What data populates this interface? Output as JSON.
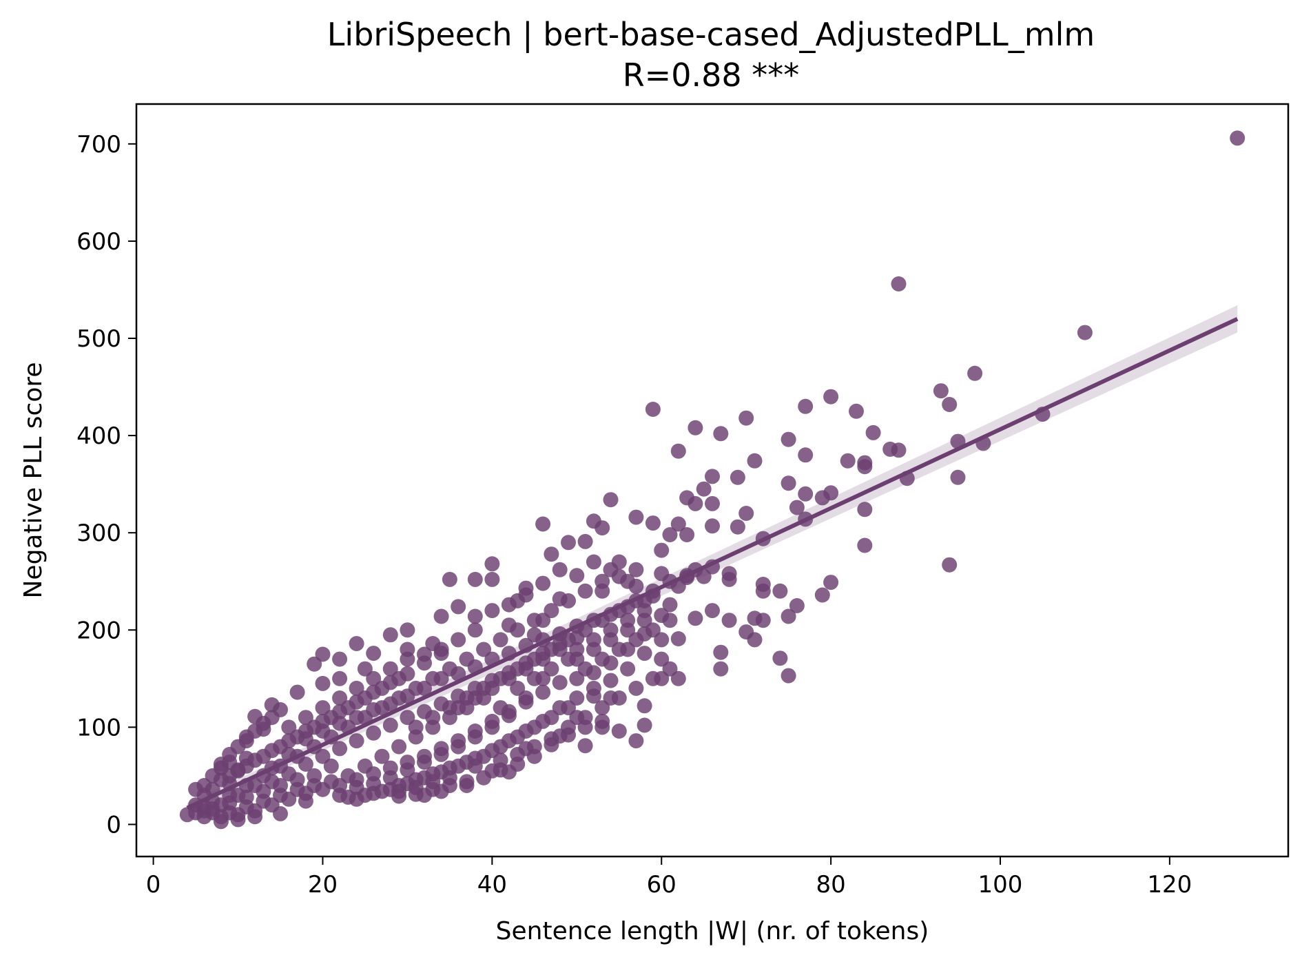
{
  "chart_data": {
    "type": "scatter",
    "title": "LibriSpeech | bert-base-cased_AdjustedPLL_mlm",
    "subtitle": "R=0.88 ***",
    "xlabel": "Sentence length |W| (nr. of tokens)",
    "ylabel": "Negative PLL score",
    "xlim": [
      -2,
      134
    ],
    "ylim": [
      -33,
      741
    ],
    "xticks": [
      0,
      20,
      40,
      60,
      80,
      100,
      120
    ],
    "yticks": [
      0,
      100,
      200,
      300,
      400,
      500,
      600,
      700
    ],
    "grid": false,
    "color": "#6b3f70",
    "regression": {
      "x": [
        4,
        128
      ],
      "y": [
        17,
        520
      ],
      "ci_upper": [
        22,
        534
      ],
      "ci_lower": [
        12,
        506
      ]
    },
    "points": [
      [
        128,
        706
      ],
      [
        88,
        556
      ],
      [
        110,
        506
      ],
      [
        97,
        464
      ],
      [
        93,
        446
      ],
      [
        94,
        432
      ],
      [
        105,
        422
      ],
      [
        80,
        440
      ],
      [
        77,
        430
      ],
      [
        83,
        425
      ],
      [
        59,
        427
      ],
      [
        70,
        418
      ],
      [
        64,
        408
      ],
      [
        67,
        402
      ],
      [
        85,
        403
      ],
      [
        75,
        396
      ],
      [
        95,
        394
      ],
      [
        98,
        392
      ],
      [
        87,
        386
      ],
      [
        88,
        385
      ],
      [
        62,
        384
      ],
      [
        77,
        380
      ],
      [
        71,
        374
      ],
      [
        82,
        374
      ],
      [
        84,
        372
      ],
      [
        84,
        368
      ],
      [
        66,
        358
      ],
      [
        69,
        357
      ],
      [
        95,
        357
      ],
      [
        89,
        356
      ],
      [
        75,
        351
      ],
      [
        65,
        345
      ],
      [
        77,
        340
      ],
      [
        80,
        341
      ],
      [
        79,
        336
      ],
      [
        66,
        330
      ],
      [
        63,
        336
      ],
      [
        64,
        330
      ],
      [
        76,
        326
      ],
      [
        84,
        324
      ],
      [
        70,
        320
      ],
      [
        77,
        314
      ],
      [
        54,
        334
      ],
      [
        57,
        316
      ],
      [
        52,
        312
      ],
      [
        46,
        309
      ],
      [
        72,
        294
      ],
      [
        69,
        306
      ],
      [
        62,
        309
      ],
      [
        59,
        310
      ],
      [
        66,
        307
      ],
      [
        61,
        298
      ],
      [
        63,
        298
      ],
      [
        84,
        287
      ],
      [
        94,
        267
      ],
      [
        68,
        252
      ],
      [
        80,
        249
      ],
      [
        72,
        247
      ],
      [
        72,
        240
      ],
      [
        74,
        240
      ],
      [
        79,
        236
      ],
      [
        76,
        225
      ],
      [
        66,
        220
      ],
      [
        68,
        210
      ],
      [
        71,
        212
      ],
      [
        72,
        210
      ],
      [
        75,
        214
      ],
      [
        64,
        212
      ],
      [
        62,
        191
      ],
      [
        60,
        190
      ],
      [
        70,
        198
      ],
      [
        71,
        190
      ],
      [
        67,
        177
      ],
      [
        67,
        160
      ],
      [
        74,
        171
      ],
      [
        75,
        153
      ],
      [
        62,
        150
      ],
      [
        60,
        150
      ],
      [
        58,
        102
      ],
      [
        58,
        122
      ],
      [
        51,
        81
      ],
      [
        53,
        100
      ],
      [
        50,
        110
      ],
      [
        48,
        91
      ],
      [
        44,
        78
      ],
      [
        42,
        54
      ],
      [
        40,
        55
      ],
      [
        38,
        60
      ],
      [
        33,
        36
      ],
      [
        31,
        31
      ],
      [
        29,
        29
      ],
      [
        24,
        26
      ],
      [
        22,
        30
      ],
      [
        18,
        24
      ],
      [
        15,
        11
      ],
      [
        12,
        8
      ],
      [
        10,
        5
      ],
      [
        8,
        3
      ],
      [
        5,
        12
      ],
      [
        4,
        10
      ],
      [
        6,
        18
      ],
      [
        7,
        24
      ],
      [
        9,
        42
      ],
      [
        10,
        55
      ],
      [
        11,
        68
      ],
      [
        12,
        111
      ],
      [
        14,
        123
      ],
      [
        19,
        165
      ],
      [
        20,
        175
      ],
      [
        22,
        170
      ],
      [
        24,
        186
      ],
      [
        26,
        176
      ],
      [
        30,
        180
      ],
      [
        33,
        186
      ],
      [
        35,
        252
      ],
      [
        38,
        252
      ],
      [
        40,
        268
      ],
      [
        40,
        252
      ],
      [
        44,
        243
      ],
      [
        43,
        230
      ],
      [
        47,
        278
      ],
      [
        49,
        290
      ],
      [
        51,
        291
      ],
      [
        53,
        305
      ],
      [
        55,
        270
      ],
      [
        57,
        262
      ],
      [
        60,
        282
      ],
      [
        63,
        254
      ],
      [
        65,
        255
      ],
      [
        53,
        240
      ],
      [
        48,
        232
      ],
      [
        46,
        210
      ],
      [
        45,
        195
      ],
      [
        42,
        205
      ],
      [
        38,
        214
      ],
      [
        36,
        224
      ],
      [
        34,
        214
      ],
      [
        30,
        200
      ],
      [
        28,
        195
      ],
      [
        25,
        160
      ],
      [
        22,
        150
      ],
      [
        20,
        145
      ],
      [
        17,
        136
      ],
      [
        15,
        118
      ],
      [
        13,
        98
      ],
      [
        11,
        86
      ],
      [
        9,
        64
      ],
      [
        8,
        58
      ],
      [
        7,
        36
      ],
      [
        14,
        58
      ],
      [
        16,
        72
      ],
      [
        18,
        88
      ],
      [
        20,
        96
      ],
      [
        22,
        104
      ],
      [
        24,
        110
      ],
      [
        26,
        118
      ],
      [
        28,
        124
      ],
      [
        30,
        132
      ],
      [
        32,
        140
      ],
      [
        34,
        150
      ],
      [
        36,
        155
      ],
      [
        38,
        162
      ],
      [
        40,
        170
      ],
      [
        42,
        176
      ],
      [
        44,
        184
      ],
      [
        46,
        190
      ],
      [
        48,
        196
      ],
      [
        50,
        204
      ],
      [
        52,
        210
      ],
      [
        54,
        216
      ],
      [
        56,
        224
      ],
      [
        58,
        230
      ],
      [
        46,
        150
      ],
      [
        44,
        130
      ],
      [
        42,
        112
      ],
      [
        40,
        100
      ],
      [
        38,
        90
      ],
      [
        36,
        80
      ],
      [
        34,
        72
      ],
      [
        32,
        64
      ],
      [
        30,
        56
      ],
      [
        28,
        48
      ],
      [
        26,
        42
      ],
      [
        24,
        38
      ],
      [
        21,
        44
      ],
      [
        19,
        40
      ],
      [
        17,
        36
      ],
      [
        15,
        30
      ],
      [
        13,
        24
      ],
      [
        11,
        18
      ],
      [
        9,
        12
      ],
      [
        36,
        120
      ],
      [
        38,
        130
      ],
      [
        40,
        140
      ],
      [
        42,
        150
      ],
      [
        44,
        160
      ],
      [
        46,
        170
      ],
      [
        48,
        180
      ],
      [
        50,
        170
      ],
      [
        52,
        180
      ],
      [
        54,
        190
      ],
      [
        56,
        200
      ],
      [
        58,
        210
      ],
      [
        50,
        150
      ],
      [
        52,
        140
      ],
      [
        54,
        130
      ],
      [
        49,
        120
      ],
      [
        47,
        110
      ],
      [
        45,
        100
      ],
      [
        43,
        90
      ],
      [
        41,
        80
      ],
      [
        39,
        70
      ],
      [
        37,
        64
      ],
      [
        35,
        58
      ],
      [
        33,
        52
      ],
      [
        31,
        46
      ],
      [
        29,
        40
      ],
      [
        27,
        34
      ],
      [
        25,
        30
      ],
      [
        12,
        40
      ],
      [
        14,
        44
      ],
      [
        16,
        52
      ],
      [
        18,
        62
      ],
      [
        20,
        70
      ],
      [
        22,
        78
      ],
      [
        24,
        86
      ],
      [
        26,
        94
      ],
      [
        28,
        102
      ],
      [
        30,
        110
      ],
      [
        32,
        116
      ],
      [
        34,
        124
      ],
      [
        36,
        132
      ],
      [
        38,
        140
      ],
      [
        40,
        148
      ],
      [
        42,
        156
      ],
      [
        44,
        166
      ],
      [
        46,
        176
      ],
      [
        48,
        186
      ],
      [
        50,
        192
      ],
      [
        10,
        30
      ],
      [
        8,
        20
      ],
      [
        6,
        14
      ],
      [
        5,
        20
      ],
      [
        7,
        12
      ],
      [
        9,
        30
      ],
      [
        11,
        40
      ],
      [
        13,
        50
      ],
      [
        15,
        60
      ],
      [
        17,
        70
      ],
      [
        19,
        80
      ],
      [
        21,
        90
      ],
      [
        23,
        100
      ],
      [
        25,
        110
      ],
      [
        27,
        120
      ],
      [
        29,
        130
      ],
      [
        31,
        140
      ],
      [
        33,
        150
      ],
      [
        35,
        160
      ],
      [
        37,
        170
      ],
      [
        39,
        180
      ],
      [
        41,
        190
      ],
      [
        43,
        200
      ],
      [
        45,
        210
      ],
      [
        47,
        220
      ],
      [
        49,
        230
      ],
      [
        51,
        240
      ],
      [
        53,
        250
      ],
      [
        55,
        255
      ],
      [
        57,
        245
      ],
      [
        59,
        235
      ],
      [
        61,
        226
      ],
      [
        60,
        215
      ],
      [
        58,
        196
      ],
      [
        56,
        180
      ],
      [
        54,
        166
      ],
      [
        52,
        156
      ],
      [
        50,
        130
      ],
      [
        48,
        120
      ],
      [
        46,
        106
      ],
      [
        44,
        96
      ],
      [
        42,
        86
      ],
      [
        40,
        76
      ],
      [
        38,
        68
      ],
      [
        36,
        60
      ],
      [
        34,
        54
      ],
      [
        32,
        48
      ],
      [
        30,
        42
      ],
      [
        28,
        36
      ],
      [
        26,
        32
      ],
      [
        23,
        28
      ],
      [
        16,
        100
      ],
      [
        18,
        110
      ],
      [
        20,
        120
      ],
      [
        22,
        130
      ],
      [
        24,
        140
      ],
      [
        26,
        150
      ],
      [
        28,
        160
      ],
      [
        30,
        170
      ],
      [
        32,
        175
      ],
      [
        34,
        180
      ],
      [
        29,
        150
      ],
      [
        27,
        140
      ],
      [
        25,
        130
      ],
      [
        23,
        120
      ],
      [
        21,
        110
      ],
      [
        19,
        100
      ],
      [
        17,
        90
      ],
      [
        15,
        80
      ],
      [
        13,
        70
      ],
      [
        11,
        60
      ],
      [
        9,
        50
      ],
      [
        31,
        90
      ],
      [
        33,
        100
      ],
      [
        35,
        110
      ],
      [
        37,
        120
      ],
      [
        39,
        130
      ],
      [
        41,
        120
      ],
      [
        43,
        140
      ],
      [
        45,
        150
      ],
      [
        47,
        160
      ],
      [
        49,
        170
      ],
      [
        51,
        160
      ],
      [
        53,
        170
      ],
      [
        55,
        180
      ],
      [
        57,
        190
      ],
      [
        59,
        200
      ],
      [
        61,
        210
      ],
      [
        62,
        245
      ],
      [
        64,
        262
      ],
      [
        66,
        265
      ],
      [
        68,
        258
      ],
      [
        60,
        258
      ],
      [
        56,
        250
      ],
      [
        54,
        262
      ],
      [
        50,
        256
      ],
      [
        52,
        270
      ],
      [
        48,
        262
      ],
      [
        46,
        248
      ],
      [
        44,
        236
      ],
      [
        42,
        226
      ],
      [
        40,
        220
      ],
      [
        38,
        200
      ],
      [
        36,
        190
      ],
      [
        34,
        176
      ],
      [
        32,
        166
      ],
      [
        30,
        155
      ],
      [
        28,
        146
      ],
      [
        26,
        136
      ],
      [
        24,
        126
      ],
      [
        22,
        116
      ],
      [
        20,
        106
      ],
      [
        18,
        96
      ],
      [
        16,
        86
      ],
      [
        14,
        76
      ],
      [
        12,
        66
      ],
      [
        10,
        56
      ],
      [
        8,
        46
      ],
      [
        6,
        30
      ],
      [
        5,
        36
      ],
      [
        6,
        40
      ],
      [
        7,
        50
      ],
      [
        8,
        62
      ],
      [
        9,
        72
      ],
      [
        10,
        80
      ],
      [
        11,
        90
      ],
      [
        12,
        96
      ],
      [
        13,
        104
      ],
      [
        14,
        110
      ],
      [
        37,
        40
      ],
      [
        35,
        48
      ],
      [
        33,
        44
      ],
      [
        31,
        38
      ],
      [
        29,
        34
      ],
      [
        41,
        66
      ],
      [
        43,
        72
      ],
      [
        45,
        80
      ],
      [
        47,
        88
      ],
      [
        49,
        100
      ],
      [
        51,
        110
      ],
      [
        53,
        120
      ],
      [
        55,
        130
      ],
      [
        57,
        140
      ],
      [
        59,
        150
      ],
      [
        61,
        160
      ],
      [
        60,
        170
      ],
      [
        58,
        176
      ],
      [
        56,
        160
      ],
      [
        54,
        148
      ],
      [
        52,
        132
      ],
      [
        57,
        86
      ],
      [
        55,
        96
      ],
      [
        53,
        106
      ],
      [
        51,
        100
      ],
      [
        49,
        92
      ],
      [
        47,
        82
      ],
      [
        45,
        70
      ],
      [
        43,
        62
      ],
      [
        41,
        56
      ],
      [
        39,
        48
      ],
      [
        37,
        44
      ],
      [
        35,
        40
      ],
      [
        34,
        34
      ],
      [
        32,
        30
      ],
      [
        27,
        70
      ],
      [
        29,
        80
      ],
      [
        31,
        100
      ],
      [
        33,
        110
      ],
      [
        35,
        120
      ],
      [
        37,
        130
      ],
      [
        39,
        140
      ],
      [
        41,
        150
      ],
      [
        43,
        160
      ],
      [
        45,
        170
      ],
      [
        47,
        180
      ],
      [
        49,
        190
      ],
      [
        51,
        200
      ],
      [
        53,
        210
      ],
      [
        55,
        220
      ],
      [
        57,
        230
      ],
      [
        59,
        240
      ],
      [
        61,
        250
      ],
      [
        63,
        256
      ],
      [
        25,
        60
      ],
      [
        23,
        50
      ],
      [
        21,
        60
      ],
      [
        19,
        50
      ],
      [
        17,
        46
      ],
      [
        15,
        40
      ],
      [
        13,
        34
      ],
      [
        11,
        28
      ],
      [
        9,
        22
      ],
      [
        7,
        16
      ],
      [
        6,
        8
      ],
      [
        8,
        8
      ],
      [
        10,
        10
      ],
      [
        12,
        14
      ],
      [
        14,
        20
      ],
      [
        16,
        26
      ],
      [
        18,
        32
      ],
      [
        20,
        36
      ],
      [
        22,
        40
      ],
      [
        24,
        46
      ],
      [
        26,
        52
      ],
      [
        28,
        58
      ],
      [
        30,
        64
      ],
      [
        32,
        70
      ],
      [
        34,
        78
      ],
      [
        36,
        86
      ],
      [
        38,
        96
      ],
      [
        40,
        106
      ],
      [
        42,
        116
      ],
      [
        44,
        126
      ],
      [
        46,
        136
      ],
      [
        48,
        146
      ],
      [
        50,
        180
      ],
      [
        52,
        190
      ],
      [
        54,
        200
      ],
      [
        56,
        210
      ],
      [
        58,
        220
      ]
    ]
  }
}
